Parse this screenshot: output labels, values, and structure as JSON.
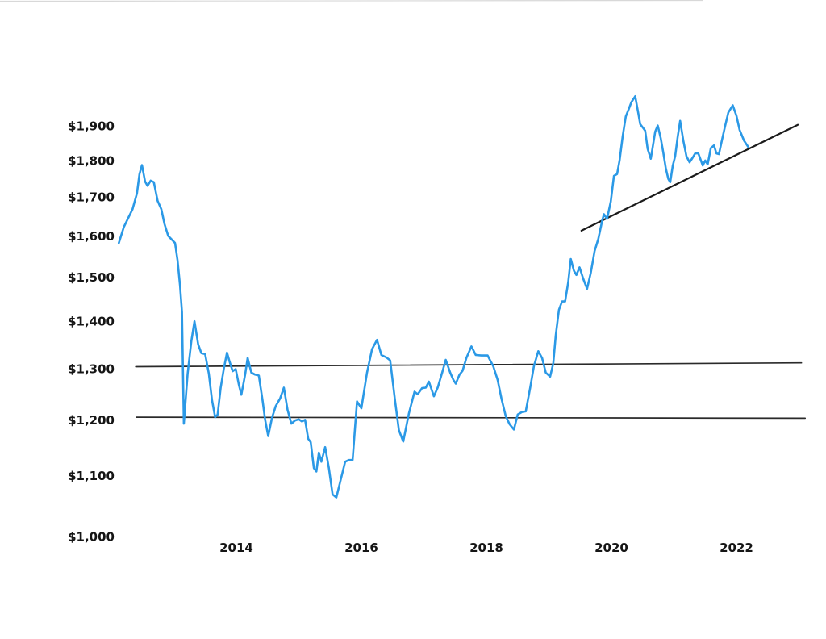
{
  "chart_data": {
    "type": "line",
    "scale": "log",
    "grid": false,
    "legend": "none",
    "xlim": [
      2012.0,
      2023.2
    ],
    "ylim": [
      1000,
      2050
    ],
    "x_ticks": [
      {
        "value": 2014,
        "label": "2014"
      },
      {
        "value": 2016,
        "label": "2016"
      },
      {
        "value": 2018,
        "label": "2018"
      },
      {
        "value": 2020,
        "label": "2020"
      },
      {
        "value": 2022,
        "label": "2022"
      }
    ],
    "y_ticks": [
      {
        "value": 1000,
        "label": "$1,000"
      },
      {
        "value": 1100,
        "label": "$1,100"
      },
      {
        "value": 1200,
        "label": "$1,200"
      },
      {
        "value": 1300,
        "label": "$1,300"
      },
      {
        "value": 1400,
        "label": "$1,400"
      },
      {
        "value": 1500,
        "label": "$1,500"
      },
      {
        "value": 1600,
        "label": "$1,600"
      },
      {
        "value": 1700,
        "label": "$1,700"
      },
      {
        "value": 1800,
        "label": "$1,800"
      },
      {
        "value": 1900,
        "label": "$1,900"
      }
    ],
    "series": [
      {
        "name": "price-line",
        "color": "#2b99e6",
        "width": 2.6,
        "points": [
          [
            2012.12,
            1582
          ],
          [
            2012.2,
            1622
          ],
          [
            2012.27,
            1645
          ],
          [
            2012.34,
            1668
          ],
          [
            2012.41,
            1710
          ],
          [
            2012.45,
            1762
          ],
          [
            2012.49,
            1787
          ],
          [
            2012.54,
            1742
          ],
          [
            2012.58,
            1730
          ],
          [
            2012.63,
            1744
          ],
          [
            2012.68,
            1740
          ],
          [
            2012.74,
            1690
          ],
          [
            2012.8,
            1668
          ],
          [
            2012.85,
            1630
          ],
          [
            2012.91,
            1600
          ],
          [
            2012.97,
            1590
          ],
          [
            2013.02,
            1582
          ],
          [
            2013.06,
            1540
          ],
          [
            2013.1,
            1480
          ],
          [
            2013.13,
            1420
          ],
          [
            2013.16,
            1193
          ],
          [
            2013.22,
            1290
          ],
          [
            2013.28,
            1357
          ],
          [
            2013.33,
            1400
          ],
          [
            2013.39,
            1350
          ],
          [
            2013.44,
            1332
          ],
          [
            2013.5,
            1330
          ],
          [
            2013.56,
            1290
          ],
          [
            2013.61,
            1238
          ],
          [
            2013.66,
            1205
          ],
          [
            2013.7,
            1210
          ],
          [
            2013.75,
            1262
          ],
          [
            2013.8,
            1300
          ],
          [
            2013.85,
            1333
          ],
          [
            2013.89,
            1315
          ],
          [
            2013.94,
            1295
          ],
          [
            2013.99,
            1299
          ],
          [
            2014.04,
            1268
          ],
          [
            2014.08,
            1248
          ],
          [
            2014.14,
            1288
          ],
          [
            2014.18,
            1322
          ],
          [
            2014.24,
            1292
          ],
          [
            2014.3,
            1288
          ],
          [
            2014.36,
            1286
          ],
          [
            2014.42,
            1236
          ],
          [
            2014.46,
            1200
          ],
          [
            2014.51,
            1170
          ],
          [
            2014.57,
            1204
          ],
          [
            2014.63,
            1226
          ],
          [
            2014.7,
            1241
          ],
          [
            2014.76,
            1262
          ],
          [
            2014.82,
            1219
          ],
          [
            2014.88,
            1193
          ],
          [
            2014.94,
            1199
          ],
          [
            2015.0,
            1201
          ],
          [
            2015.05,
            1197
          ],
          [
            2015.1,
            1200
          ],
          [
            2015.15,
            1165
          ],
          [
            2015.19,
            1159
          ],
          [
            2015.24,
            1113
          ],
          [
            2015.28,
            1107
          ],
          [
            2015.32,
            1140
          ],
          [
            2015.36,
            1124
          ],
          [
            2015.42,
            1150
          ],
          [
            2015.48,
            1113
          ],
          [
            2015.54,
            1068
          ],
          [
            2015.6,
            1063
          ],
          [
            2015.67,
            1093
          ],
          [
            2015.74,
            1124
          ],
          [
            2015.8,
            1127
          ],
          [
            2015.86,
            1127
          ],
          [
            2015.93,
            1235
          ],
          [
            2016.0,
            1222
          ],
          [
            2016.09,
            1292
          ],
          [
            2016.17,
            1340
          ],
          [
            2016.25,
            1360
          ],
          [
            2016.32,
            1328
          ],
          [
            2016.4,
            1323
          ],
          [
            2016.46,
            1317
          ],
          [
            2016.54,
            1236
          ],
          [
            2016.6,
            1181
          ],
          [
            2016.67,
            1160
          ],
          [
            2016.76,
            1212
          ],
          [
            2016.85,
            1254
          ],
          [
            2016.9,
            1249
          ],
          [
            2016.97,
            1261
          ],
          [
            2017.03,
            1262
          ],
          [
            2017.08,
            1274
          ],
          [
            2017.16,
            1245
          ],
          [
            2017.22,
            1262
          ],
          [
            2017.29,
            1291
          ],
          [
            2017.35,
            1318
          ],
          [
            2017.42,
            1292
          ],
          [
            2017.47,
            1278
          ],
          [
            2017.51,
            1270
          ],
          [
            2017.57,
            1288
          ],
          [
            2017.62,
            1296
          ],
          [
            2017.68,
            1322
          ],
          [
            2017.76,
            1346
          ],
          [
            2017.83,
            1328
          ],
          [
            2017.92,
            1327
          ],
          [
            2018.02,
            1327
          ],
          [
            2018.11,
            1305
          ],
          [
            2018.18,
            1277
          ],
          [
            2018.24,
            1241
          ],
          [
            2018.31,
            1207
          ],
          [
            2018.37,
            1192
          ],
          [
            2018.44,
            1182
          ],
          [
            2018.5,
            1210
          ],
          [
            2018.57,
            1215
          ],
          [
            2018.63,
            1216
          ],
          [
            2018.7,
            1262
          ],
          [
            2018.76,
            1305
          ],
          [
            2018.83,
            1336
          ],
          [
            2018.89,
            1322
          ],
          [
            2018.95,
            1292
          ],
          [
            2019.02,
            1284
          ],
          [
            2019.07,
            1311
          ],
          [
            2019.11,
            1370
          ],
          [
            2019.16,
            1425
          ],
          [
            2019.21,
            1444
          ],
          [
            2019.26,
            1444
          ],
          [
            2019.31,
            1489
          ],
          [
            2019.35,
            1543
          ],
          [
            2019.4,
            1515
          ],
          [
            2019.44,
            1505
          ],
          [
            2019.49,
            1523
          ],
          [
            2019.55,
            1496
          ],
          [
            2019.61,
            1473
          ],
          [
            2019.67,
            1510
          ],
          [
            2019.73,
            1562
          ],
          [
            2019.79,
            1592
          ],
          [
            2019.85,
            1637
          ],
          [
            2019.88,
            1655
          ],
          [
            2019.93,
            1643
          ],
          [
            2019.99,
            1688
          ],
          [
            2020.04,
            1757
          ],
          [
            2020.09,
            1762
          ],
          [
            2020.13,
            1800
          ],
          [
            2020.18,
            1870
          ],
          [
            2020.23,
            1928
          ],
          [
            2020.28,
            1952
          ],
          [
            2020.32,
            1972
          ],
          [
            2020.38,
            1990
          ],
          [
            2020.43,
            1938
          ],
          [
            2020.46,
            1905
          ],
          [
            2020.51,
            1893
          ],
          [
            2020.54,
            1886
          ],
          [
            2020.58,
            1833
          ],
          [
            2020.63,
            1805
          ],
          [
            2020.7,
            1883
          ],
          [
            2020.74,
            1901
          ],
          [
            2020.79,
            1863
          ],
          [
            2020.83,
            1822
          ],
          [
            2020.87,
            1778
          ],
          [
            2020.91,
            1749
          ],
          [
            2020.94,
            1740
          ],
          [
            2020.98,
            1785
          ],
          [
            2021.02,
            1812
          ],
          [
            2021.06,
            1867
          ],
          [
            2021.1,
            1915
          ],
          [
            2021.15,
            1857
          ],
          [
            2021.2,
            1812
          ],
          [
            2021.25,
            1795
          ],
          [
            2021.3,
            1808
          ],
          [
            2021.34,
            1820
          ],
          [
            2021.39,
            1820
          ],
          [
            2021.46,
            1786
          ],
          [
            2021.5,
            1800
          ],
          [
            2021.54,
            1789
          ],
          [
            2021.59,
            1835
          ],
          [
            2021.64,
            1843
          ],
          [
            2021.68,
            1820
          ],
          [
            2021.72,
            1818
          ],
          [
            2021.77,
            1860
          ],
          [
            2021.82,
            1900
          ],
          [
            2021.87,
            1940
          ],
          [
            2021.94,
            1962
          ],
          [
            2022.0,
            1930
          ],
          [
            2022.05,
            1888
          ],
          [
            2022.12,
            1857
          ],
          [
            2022.19,
            1838
          ]
        ]
      }
    ],
    "annotations": [
      {
        "name": "resistance-line-1305",
        "type": "segment",
        "color": "#2a2a2a",
        "width": 1.7,
        "points": [
          [
            2012.39,
            1304
          ],
          [
            2023.04,
            1312
          ]
        ]
      },
      {
        "name": "support-line-1200",
        "type": "segment",
        "color": "#2a2a2a",
        "width": 1.7,
        "points": [
          [
            2012.4,
            1205
          ],
          [
            2023.1,
            1203
          ]
        ]
      },
      {
        "name": "ascending-trendline",
        "type": "segment",
        "color": "#1b1b1b",
        "width": 2.2,
        "points": [
          [
            2019.52,
            1613
          ],
          [
            2022.98,
            1903
          ]
        ]
      }
    ],
    "colors": {
      "text": "#151515",
      "background": "#ffffff",
      "scan_artifact": "#d8d8d8"
    }
  }
}
